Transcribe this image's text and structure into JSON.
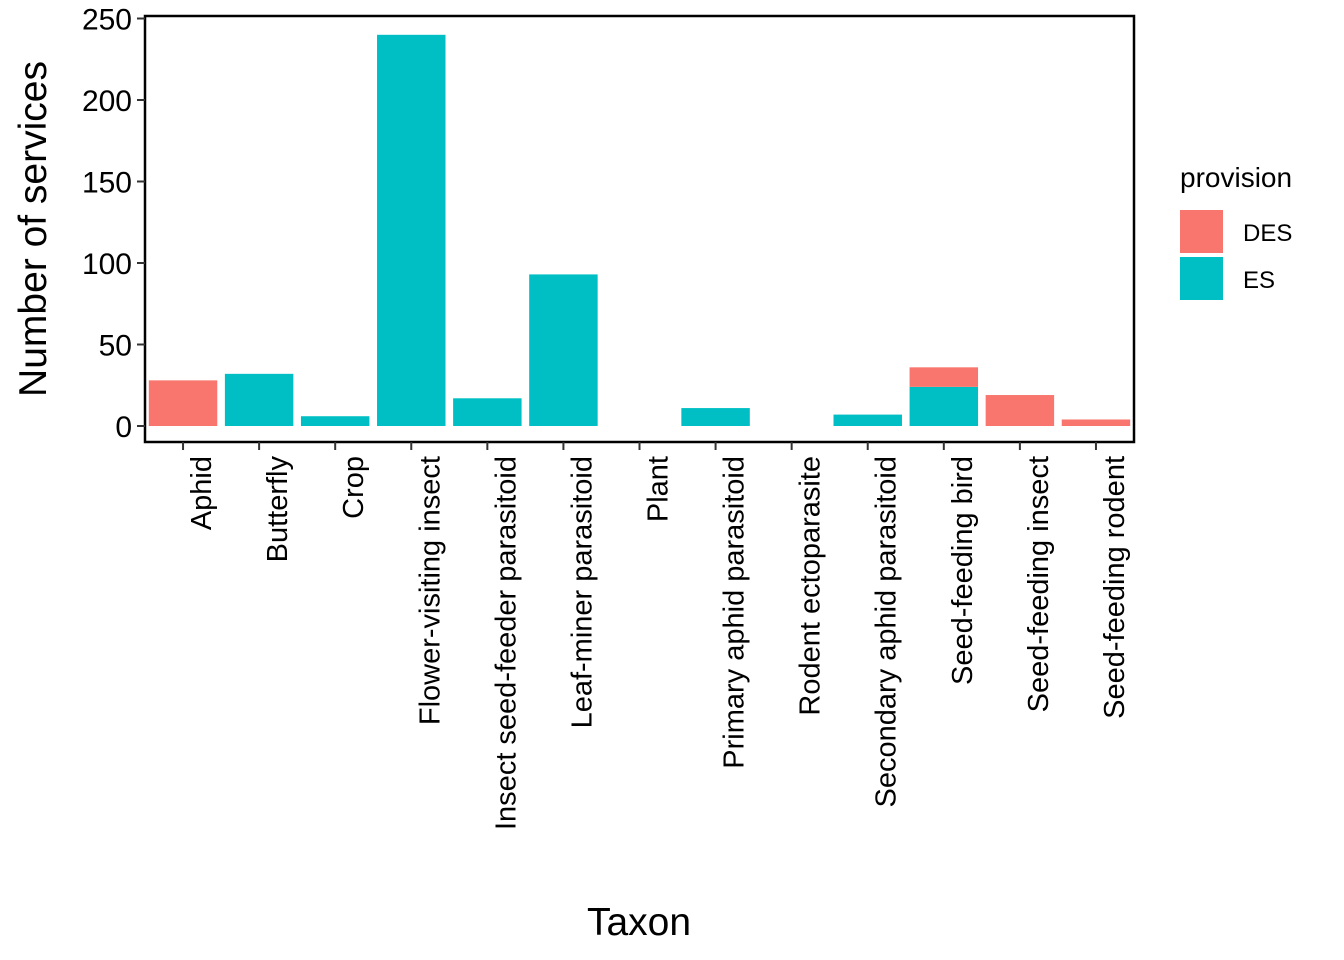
{
  "chart_data": {
    "type": "bar",
    "stacked": true,
    "xlabel": "Taxon",
    "ylabel": "Number of services",
    "ylim": [
      0,
      250
    ],
    "yticks": [
      0,
      50,
      100,
      150,
      200,
      250
    ],
    "grid": false,
    "legend_position": "right",
    "legend_title": "provision",
    "categories": [
      "Aphid",
      "Butterfly",
      "Crop",
      "Flower-visiting insect",
      "Insect seed-feeder parasitoid",
      "Leaf-miner parasitoid",
      "Plant",
      "Primary aphid parasitoid",
      "Rodent ectoparasite",
      "Secondary aphid parasitoid",
      "Seed-feeding bird",
      "Seed-feeding insect",
      "Seed-feeding rodent"
    ],
    "series": [
      {
        "name": "DES",
        "color": "#F8766D",
        "values": [
          28,
          0,
          0,
          0,
          0,
          0,
          0,
          0,
          0,
          0,
          12,
          19,
          4
        ]
      },
      {
        "name": "ES",
        "color": "#00BFC4",
        "values": [
          0,
          32,
          6,
          240,
          17,
          93,
          0,
          11,
          0,
          7,
          24,
          0,
          0
        ]
      }
    ]
  }
}
